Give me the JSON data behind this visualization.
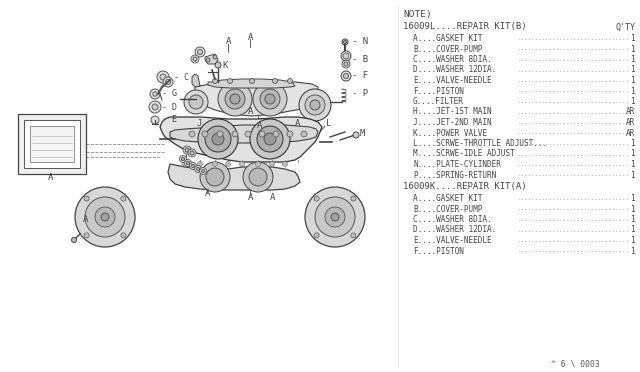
{
  "bg_color": "#ffffff",
  "dc": "#555555",
  "tc": "#444444",
  "note_header": "NOTE)",
  "kit_b_header": "16009L....REPAIR KIT(B)",
  "kit_b_qty_label": "Q'TY",
  "kit_b_items": [
    "A....GASKET KIT",
    "B....COVER-PUMP",
    "C....WASHER 8DIA.",
    "D....WASHER 12DIA.",
    "E....VALVE-NEEDLE",
    "F....PISTON",
    "G....FILTER",
    "H....JET-1ST MAIN",
    "J....JET-2ND MAIN",
    "K....POWER VALVE",
    "L....SCRWE-THROTTLE ADJUST...",
    "M....SCRWE-IDLE ADJUST",
    "N....PLATE-CYLINDER",
    "P....SPRING-RETURN"
  ],
  "kit_b_qtys": [
    "1",
    "1",
    "1",
    "1",
    "1",
    "1",
    "1",
    "AR",
    "AR",
    "AR",
    "1",
    "1",
    "1",
    "1"
  ],
  "kit_a_header": "16009K....REPAIR KIT(A)",
  "kit_a_items": [
    "A....GASKET KIT",
    "B....COVER-PUMP",
    "C....WASHER 8DIA.",
    "D....WASHER 12DIA.",
    "E....VALVE-NEEDLE",
    "F....PISTON"
  ],
  "kit_a_qtys": [
    "1",
    "1",
    "1",
    "1",
    "1",
    "1"
  ],
  "page_ref": "^ 6 \\ 0003",
  "fs_note": 6.8,
  "fs_hdr": 6.5,
  "fs_item": 5.6,
  "fs_ref": 5.8
}
